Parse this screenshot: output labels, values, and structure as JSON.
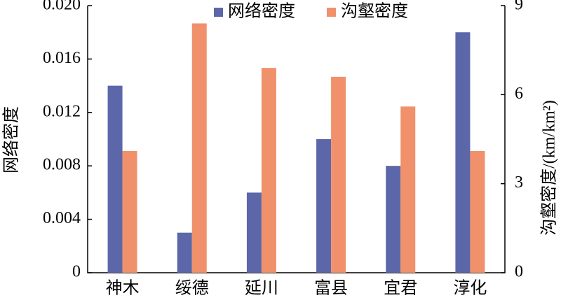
{
  "chart_data": {
    "type": "bar",
    "categories": [
      "神木",
      "绥德",
      "延川",
      "富县",
      "宜君",
      "淳化"
    ],
    "ylabel": "网络密度",
    "y2label": "沟壑密度/(km/km²)",
    "ylim": [
      0,
      0.02
    ],
    "yticks": [
      0,
      0.004,
      0.008,
      0.012,
      0.016,
      {
        "value": 0.02,
        "label": "0.020"
      }
    ],
    "y2lim": [
      0,
      9
    ],
    "y2ticks": [
      0,
      3,
      6,
      9
    ],
    "legend": "top",
    "series": [
      {
        "name": "网络密度",
        "color": "#5b67a8",
        "values": [
          0.014,
          0.003,
          0.006,
          0.01,
          0.008,
          0.018
        ]
      },
      {
        "name": "沟壑密度",
        "color": "#f0916c",
        "axis": "y2",
        "values": [
          4.1,
          8.4,
          6.9,
          6.6,
          5.6,
          4.1
        ]
      }
    ]
  }
}
